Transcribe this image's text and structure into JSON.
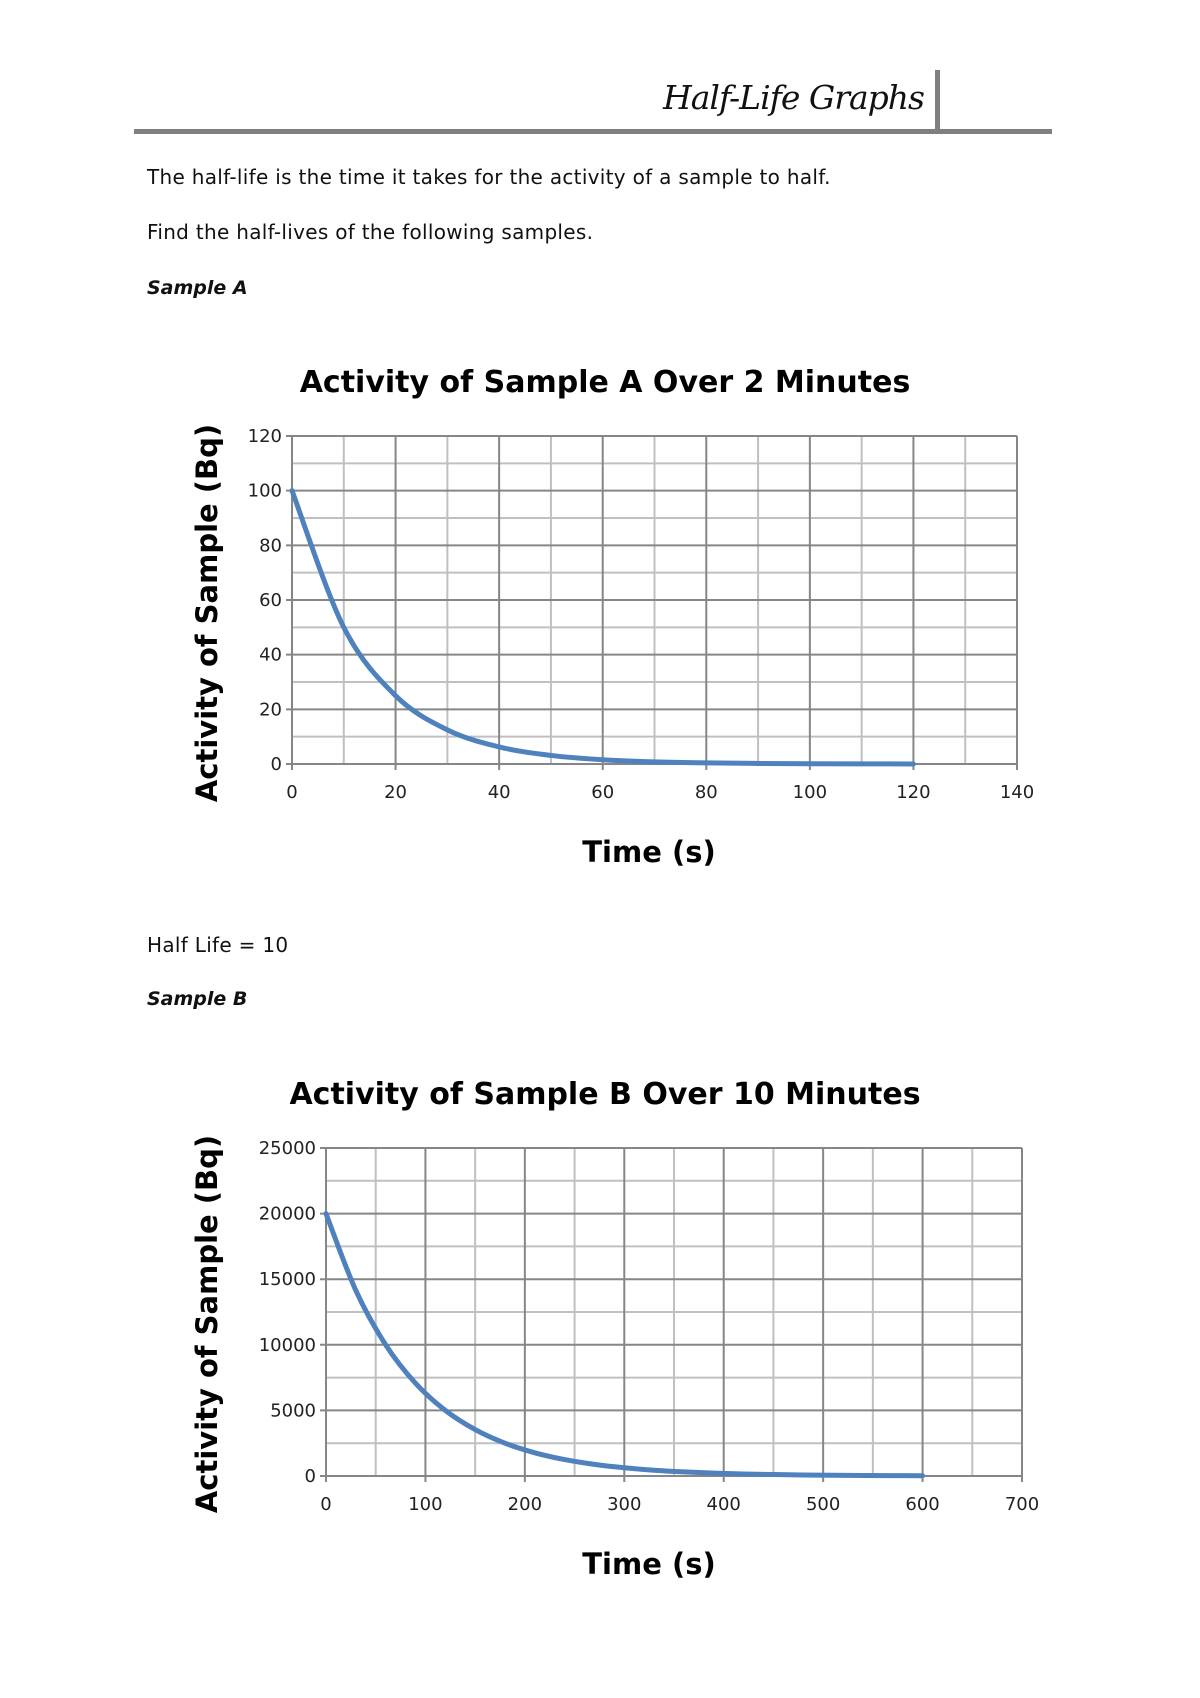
{
  "header": {
    "title": "Half-Life Graphs"
  },
  "intro": {
    "line1": "The half-life is the time it takes for the activity of a sample to half.",
    "line2": "Find the half-lives of the following samples."
  },
  "sample_a": {
    "label": "Sample A",
    "answer": "Half Life = 10"
  },
  "sample_b": {
    "label": "Sample B"
  },
  "colors": {
    "series": "#4f81bd",
    "grid_major": "#868686",
    "grid_minor": "#c0c0c0"
  },
  "chart_data": [
    {
      "type": "line",
      "title": "Activity of Sample A Over 2 Minutes",
      "xlabel": "Time (s)",
      "ylabel": "Activity of Sample (Bq)",
      "xlim": [
        0,
        140
      ],
      "ylim": [
        0,
        120
      ],
      "xticks": [
        0,
        20,
        40,
        60,
        80,
        100,
        120,
        140
      ],
      "yticks": [
        0,
        20,
        40,
        60,
        80,
        100,
        120
      ],
      "grid": true,
      "x": [
        0,
        10,
        20,
        30,
        40,
        50,
        60,
        70,
        80,
        90,
        100,
        110,
        120
      ],
      "series": [
        {
          "values": [
            100,
            50,
            25,
            12.5,
            6.25,
            3.13,
            1.56,
            0.78,
            0.39,
            0.2,
            0.1,
            0.05,
            0.02
          ]
        }
      ]
    },
    {
      "type": "line",
      "title": "Activity of Sample B Over 10 Minutes",
      "xlabel": "Time (s)",
      "ylabel": "Activity of Sample (Bq)",
      "xlim": [
        0,
        700
      ],
      "ylim": [
        0,
        25000
      ],
      "xticks": [
        0,
        100,
        200,
        300,
        400,
        500,
        600,
        700
      ],
      "yticks": [
        0,
        5000,
        10000,
        15000,
        20000,
        25000
      ],
      "grid": true,
      "x": [
        0,
        30,
        60,
        90,
        120,
        150,
        180,
        210,
        240,
        270,
        300,
        330,
        360,
        390,
        420,
        450,
        480,
        510,
        540,
        570,
        600
      ],
      "series": [
        {
          "values": [
            20000,
            14142,
            10000,
            7071,
            5000,
            3536,
            2500,
            1768,
            1250,
            884,
            625,
            442,
            313,
            221,
            156,
            110,
            78,
            55,
            39,
            28,
            20
          ]
        }
      ]
    }
  ]
}
